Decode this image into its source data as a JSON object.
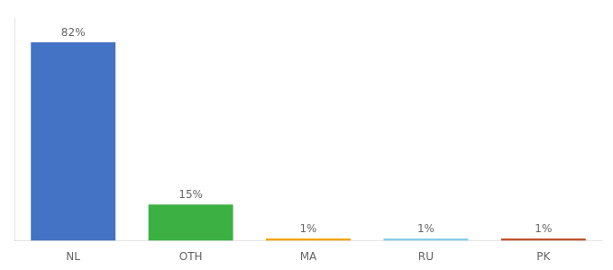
{
  "chart_data": {
    "type": "bar",
    "categories": [
      "NL",
      "OTH",
      "MA",
      "RU",
      "PK"
    ],
    "values": [
      82,
      15,
      1,
      1,
      1
    ],
    "value_labels": [
      "82%",
      "15%",
      "1%",
      "1%",
      "1%"
    ],
    "colors": [
      "#4472c4",
      "#3cb043",
      "#f0a500",
      "#87ceeb",
      "#c0522b"
    ],
    "ylim": [
      0,
      92
    ],
    "data_labels": true,
    "tick_labels": "x",
    "grid": false
  }
}
